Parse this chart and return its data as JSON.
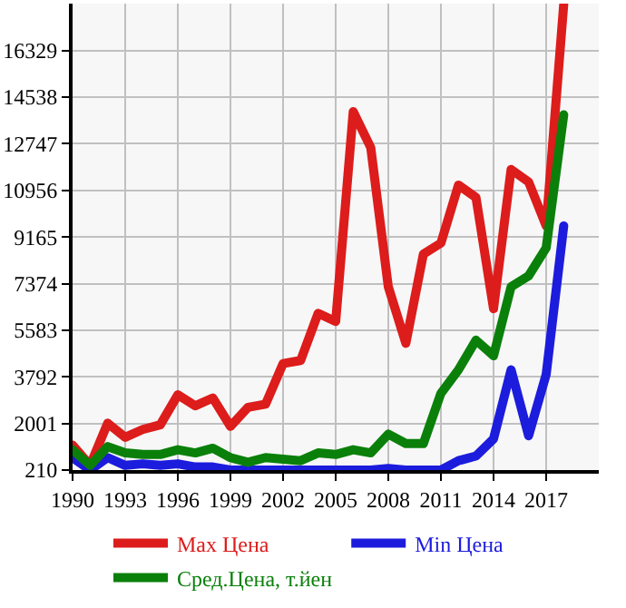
{
  "chart_data": {
    "type": "line",
    "x": [
      1990,
      1991,
      1992,
      1993,
      1994,
      1995,
      1996,
      1997,
      1998,
      1999,
      2000,
      2001,
      2002,
      2003,
      2004,
      2005,
      2006,
      2007,
      2008,
      2009,
      2010,
      2011,
      2012,
      2013,
      2014,
      2015,
      2016,
      2017,
      2018
    ],
    "series": [
      {
        "name": "Max Цена",
        "color": "#dd1c1c",
        "values": [
          1170,
          390,
          2010,
          1470,
          1770,
          1950,
          3100,
          2680,
          2980,
          1890,
          2620,
          2740,
          4300,
          4420,
          6230,
          5920,
          13980,
          12600,
          7250,
          5080,
          8510,
          8930,
          11160,
          10680,
          6410,
          11760,
          11280,
          9590,
          18100
        ]
      },
      {
        "name": "Min Цена",
        "color": "#1c1cdd",
        "values": [
          690,
          210,
          690,
          390,
          450,
          390,
          450,
          330,
          330,
          210,
          210,
          210,
          210,
          210,
          210,
          210,
          210,
          210,
          270,
          210,
          210,
          210,
          570,
          750,
          1410,
          4060,
          1530,
          3880,
          9590
        ]
      },
      {
        "name": "Сред.Цена, т.йен",
        "color": "#0a800a",
        "values": [
          990,
          390,
          1110,
          870,
          810,
          810,
          990,
          870,
          1050,
          690,
          510,
          690,
          630,
          570,
          870,
          810,
          990,
          870,
          1590,
          1230,
          1230,
          3160,
          4060,
          5200,
          4600,
          7250,
          7670,
          8750,
          13860
        ]
      }
    ],
    "xlim": [
      1990,
      2020
    ],
    "xticks": [
      1990,
      1993,
      1996,
      1999,
      2002,
      2005,
      2008,
      2011,
      2014,
      2017
    ],
    "ylim": [
      210,
      18130
    ],
    "yticks": [
      210,
      2001,
      3792,
      5583,
      7374,
      9165,
      10956,
      12747,
      14538,
      16329
    ],
    "grid": true,
    "legend": "bottom",
    "marker": "none",
    "line_style": "solid"
  }
}
